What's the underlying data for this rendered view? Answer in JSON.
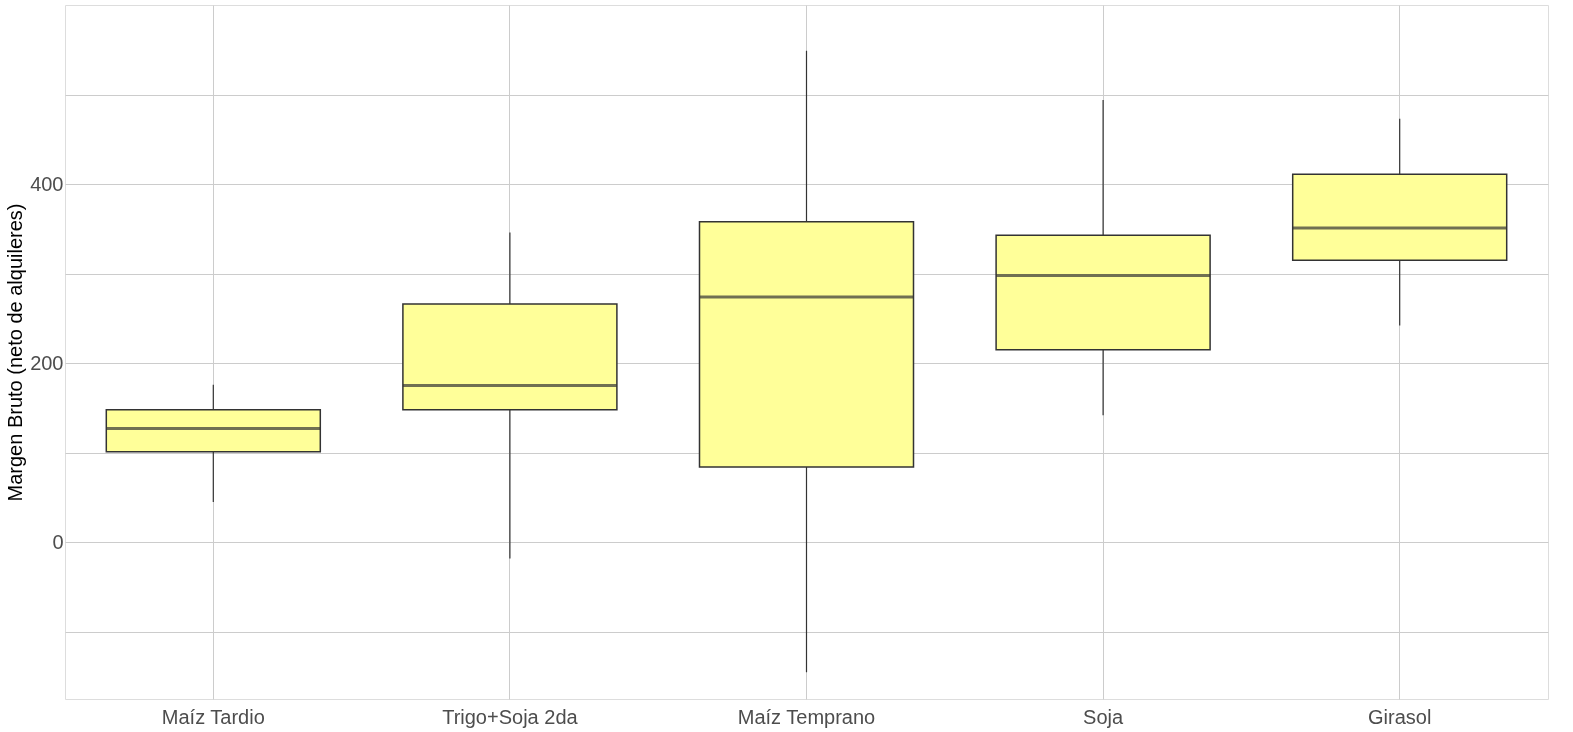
{
  "chart_data": {
    "type": "box",
    "ylabel": "Margen Bruto (neto de alquileres)",
    "categories": [
      "Maíz Tardio",
      "Trigo+Soja 2da",
      "Maíz Temprano",
      "Soja",
      "Girasol"
    ],
    "boxes": [
      {
        "low": 45,
        "q1": 101,
        "median": 127,
        "q3": 148,
        "high": 176
      },
      {
        "low": -18,
        "q1": 148,
        "median": 175,
        "q3": 266,
        "high": 346
      },
      {
        "low": -145,
        "q1": 84,
        "median": 274,
        "q3": 358,
        "high": 549
      },
      {
        "low": 142,
        "q1": 215,
        "median": 298,
        "q3": 343,
        "high": 494
      },
      {
        "low": 242,
        "q1": 315,
        "median": 351,
        "q3": 411,
        "high": 473
      }
    ],
    "color": "#ffff99",
    "ylim": [
      -175,
      600
    ],
    "yticks": [
      {
        "value": -100,
        "label": null
      },
      0,
      {
        "value": 100,
        "label": null
      },
      200,
      {
        "value": 300,
        "label": null
      },
      400,
      {
        "value": 500,
        "label": null
      }
    ],
    "grid": true
  }
}
